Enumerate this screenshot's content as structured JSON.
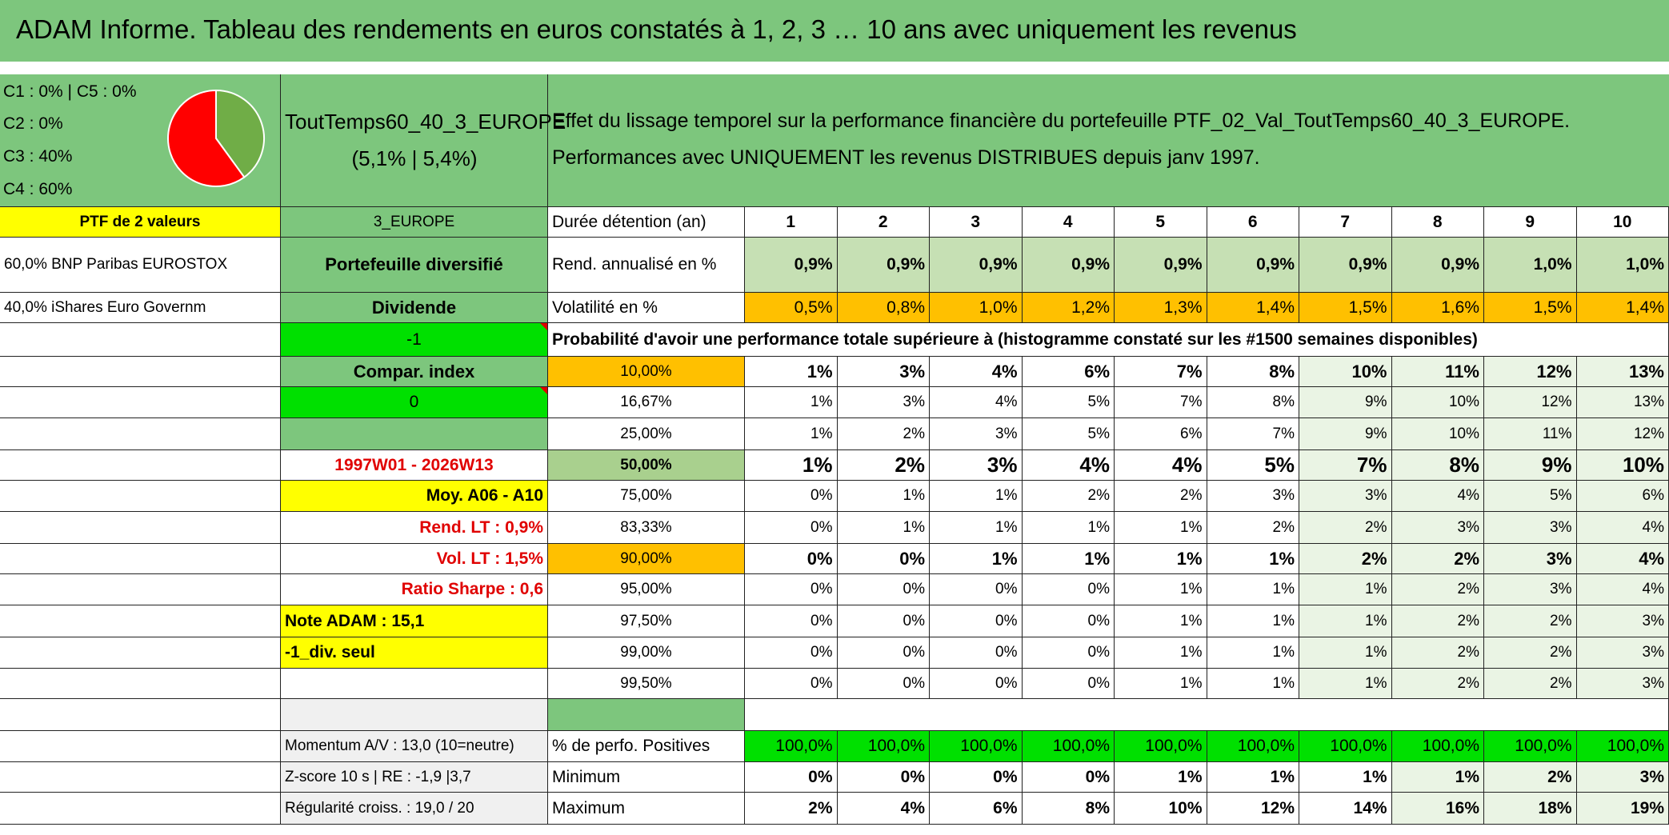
{
  "header": {
    "title": "ADAM Informe. Tableau des rendements en euros constatés à 1, 2, 3 … 10 ans avec uniquement les revenus"
  },
  "sidebar": {
    "pie_labels": [
      "C1 : 0% | C5 : 0%",
      "C2 : 0%",
      "C3 : 40%",
      "C4 : 60%"
    ],
    "pie": {
      "values": [
        40,
        60
      ],
      "colors": [
        "#70ad47",
        "#ff0000"
      ]
    }
  },
  "summary": {
    "portfolio": "ToutTemps60_40_3_EUROPE",
    "perf": "(5,1% | 5,4%)",
    "description": [
      "Effet du lissage temporel sur la performance financière du portefeuille PTF_02_Val_ToutTemps60_40_3_EUROPE.",
      "Performances avec UNIQUEMENT les revenus DISTRIBUES depuis janv 1997."
    ]
  },
  "table": {
    "rows": [
      [
        "PTF de 2 valeurs",
        "3_EUROPE",
        "Durée détention (an)",
        "1",
        "2",
        "3",
        "4",
        "5",
        "6",
        "7",
        "8",
        "9",
        "10"
      ],
      [
        "60,0% BNP Paribas EUROSTOX",
        "Portefeuille diversifié",
        "Rend. annualisé en %",
        "0,9%",
        "0,9%",
        "0,9%",
        "0,9%",
        "0,9%",
        "0,9%",
        "0,9%",
        "0,9%",
        "1,0%",
        "1,0%"
      ],
      [
        "40,0% iShares Euro Governm",
        "Dividende",
        "Volatilité en %",
        "0,5%",
        "0,8%",
        "1,0%",
        "1,2%",
        "1,3%",
        "1,4%",
        "1,5%",
        "1,6%",
        "1,5%",
        "1,4%"
      ],
      [
        null,
        "-1",
        "Probabilité d'avoir une performance totale supérieure à (histogramme constaté sur les #1500 semaines disponibles)",
        null,
        null,
        null,
        null,
        null,
        null,
        null,
        null,
        null,
        null
      ],
      [
        null,
        "Compar. index",
        "10,00%",
        "1%",
        "3%",
        "4%",
        "6%",
        "7%",
        "8%",
        "10%",
        "11%",
        "12%",
        "13%"
      ],
      [
        null,
        "0",
        "16,67%",
        "1%",
        "3%",
        "4%",
        "5%",
        "7%",
        "8%",
        "9%",
        "10%",
        "12%",
        "13%"
      ],
      [
        null,
        null,
        "25,00%",
        "1%",
        "2%",
        "3%",
        "5%",
        "6%",
        "7%",
        "9%",
        "10%",
        "11%",
        "12%"
      ],
      [
        null,
        "1997W01 - 2026W13",
        "50,00%",
        "1%",
        "2%",
        "3%",
        "4%",
        "4%",
        "5%",
        "7%",
        "8%",
        "9%",
        "10%"
      ],
      [
        null,
        "Moy. A06 - A10",
        "75,00%",
        "0%",
        "1%",
        "1%",
        "2%",
        "2%",
        "3%",
        "3%",
        "4%",
        "5%",
        "6%"
      ],
      [
        null,
        "Rend. LT : 0,9%",
        "83,33%",
        "0%",
        "1%",
        "1%",
        "1%",
        "1%",
        "2%",
        "2%",
        "3%",
        "3%",
        "4%"
      ],
      [
        null,
        "Vol. LT : 1,5%",
        "90,00%",
        "0%",
        "0%",
        "1%",
        "1%",
        "1%",
        "1%",
        "2%",
        "2%",
        "3%",
        "4%"
      ],
      [
        null,
        "Ratio Sharpe : 0,6",
        "95,00%",
        "0%",
        "0%",
        "0%",
        "0%",
        "1%",
        "1%",
        "1%",
        "2%",
        "3%",
        "4%"
      ],
      [
        null,
        "Note ADAM : 15,1",
        "97,50%",
        "0%",
        "0%",
        "0%",
        "0%",
        "1%",
        "1%",
        "1%",
        "2%",
        "2%",
        "3%"
      ],
      [
        null,
        "-1_div. seul",
        "99,00%",
        "0%",
        "0%",
        "0%",
        "0%",
        "1%",
        "1%",
        "1%",
        "2%",
        "2%",
        "3%"
      ],
      [
        null,
        null,
        "99,50%",
        "0%",
        "0%",
        "0%",
        "0%",
        "1%",
        "1%",
        "1%",
        "2%",
        "2%",
        "3%"
      ],
      [
        null,
        null,
        null,
        null,
        null,
        null,
        null,
        null,
        null,
        null,
        null,
        null,
        null
      ],
      [
        null,
        "Momentum A/V : 13,0 (10=neutre)",
        "% de perfo. Positives",
        "100,0%",
        "100,0%",
        "100,0%",
        "100,0%",
        "100,0%",
        "100,0%",
        "100,0%",
        "100,0%",
        "100,0%",
        "100,0%"
      ],
      [
        null,
        "Z-score 10 s | RE : -1,9 |3,7",
        "Minimum",
        "0%",
        "0%",
        "0%",
        "0%",
        "1%",
        "1%",
        "1%",
        "1%",
        "2%",
        "3%"
      ],
      [
        null,
        "Régularité croiss. : 19,0 / 20",
        "Maximum",
        "2%",
        "4%",
        "6%",
        "8%",
        "10%",
        "12%",
        "14%",
        "16%",
        "18%",
        "19%"
      ]
    ]
  }
}
